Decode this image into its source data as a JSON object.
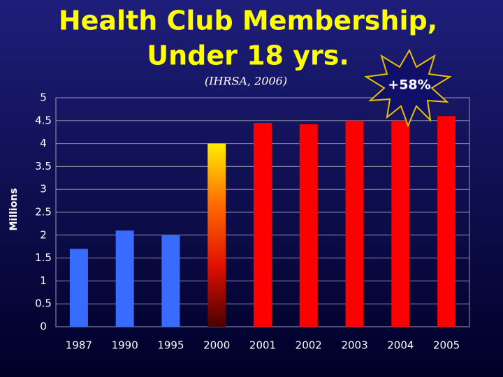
{
  "chart_data": {
    "type": "bar",
    "title": [
      "Health Club Membership,",
      "Under 18 yrs."
    ],
    "subtitle": "(IHRSA, 2006)",
    "ylabel": "Millions",
    "annotation": "+58%",
    "categories": [
      "1987",
      "1990",
      "1995",
      "2000",
      "2001",
      "2002",
      "2003",
      "2004",
      "2005"
    ],
    "values": [
      1.7,
      2.1,
      2.0,
      4.0,
      4.45,
      4.42,
      4.5,
      4.5,
      4.6
    ],
    "colors": [
      "#3a6bff",
      "#3a6bff",
      "#3a6bff",
      [
        "#ffee00",
        "#ff6a00",
        "#e01000",
        "#4a0000"
      ],
      "#ff0000",
      "#ff0000",
      "#ff0000",
      "#ff0000",
      "#ff0000"
    ],
    "ylim": [
      0,
      5
    ],
    "yticks": [
      0,
      0.5,
      1,
      1.5,
      2,
      2.5,
      3,
      3.5,
      4,
      4.5,
      5
    ],
    "grid": true
  }
}
